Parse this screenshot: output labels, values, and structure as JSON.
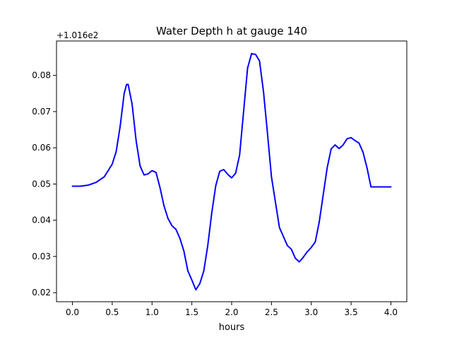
{
  "chart_data": {
    "type": "line",
    "title": "Water Depth h at gauge 140",
    "xlabel": "hours",
    "ylabel": "",
    "offset_label": "+1.016e2",
    "xlim": [
      -0.2,
      4.2
    ],
    "ylim": [
      0.0175,
      0.0895
    ],
    "xticks": [
      0.0,
      0.5,
      1.0,
      1.5,
      2.0,
      2.5,
      3.0,
      3.5,
      4.0
    ],
    "xtick_labels": [
      "0.0",
      "0.5",
      "1.0",
      "1.5",
      "2.0",
      "2.5",
      "3.0",
      "3.5",
      "4.0"
    ],
    "yticks": [
      0.02,
      0.03,
      0.04,
      0.05,
      0.06,
      0.07,
      0.08
    ],
    "ytick_labels": [
      "0.02",
      "0.03",
      "0.04",
      "0.05",
      "0.06",
      "0.07",
      "0.08"
    ],
    "grid": false,
    "series": [
      {
        "color": "#0000ff",
        "x": [
          0.0,
          0.1,
          0.2,
          0.3,
          0.4,
          0.5,
          0.55,
          0.6,
          0.65,
          0.68,
          0.7,
          0.75,
          0.8,
          0.85,
          0.9,
          0.95,
          1.0,
          1.05,
          1.1,
          1.15,
          1.2,
          1.25,
          1.3,
          1.35,
          1.4,
          1.45,
          1.5,
          1.55,
          1.6,
          1.65,
          1.7,
          1.75,
          1.8,
          1.85,
          1.9,
          1.95,
          2.0,
          2.05,
          2.1,
          2.15,
          2.2,
          2.25,
          2.3,
          2.35,
          2.4,
          2.45,
          2.5,
          2.55,
          2.6,
          2.65,
          2.7,
          2.75,
          2.8,
          2.85,
          2.9,
          2.95,
          3.0,
          3.05,
          3.1,
          3.15,
          3.2,
          3.25,
          3.3,
          3.35,
          3.4,
          3.45,
          3.5,
          3.55,
          3.6,
          3.65,
          3.7,
          3.75,
          3.8,
          3.85,
          3.9,
          3.95,
          4.0
        ],
        "y": [
          0.0494,
          0.0494,
          0.0497,
          0.0505,
          0.052,
          0.0555,
          0.059,
          0.066,
          0.075,
          0.0775,
          0.0775,
          0.072,
          0.062,
          0.055,
          0.0525,
          0.0528,
          0.0537,
          0.0532,
          0.049,
          0.044,
          0.0405,
          0.0385,
          0.0375,
          0.035,
          0.0315,
          0.026,
          0.0235,
          0.0208,
          0.0225,
          0.026,
          0.033,
          0.042,
          0.0495,
          0.0535,
          0.054,
          0.0527,
          0.0517,
          0.053,
          0.058,
          0.07,
          0.082,
          0.086,
          0.0858,
          0.084,
          0.0755,
          0.064,
          0.052,
          0.045,
          0.038,
          0.0355,
          0.033,
          0.032,
          0.0295,
          0.0285,
          0.0298,
          0.0313,
          0.0325,
          0.034,
          0.0395,
          0.047,
          0.0545,
          0.0597,
          0.0608,
          0.0598,
          0.0608,
          0.0625,
          0.0628,
          0.062,
          0.0613,
          0.0588,
          0.0545,
          0.0492,
          0.0492,
          0.0492,
          0.0492,
          0.0492,
          0.0492
        ]
      }
    ]
  }
}
